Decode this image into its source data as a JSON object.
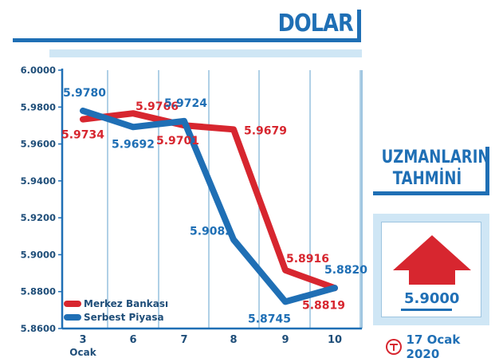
{
  "title": "DOLAR",
  "chart_data": {
    "type": "line",
    "categories": [
      "3",
      "6",
      "7",
      "8",
      "9",
      "10"
    ],
    "x_sublabel": "Ocak",
    "ylim": [
      5.86,
      6.0
    ],
    "yticks": [
      "5.8600",
      "5.8800",
      "5.9000",
      "5.9200",
      "5.9400",
      "5.9600",
      "5.9800",
      "6.0000"
    ],
    "grid": "vertical",
    "legend_position": "bottom-left",
    "series": [
      {
        "name": "Merkez Bankası",
        "color": "#d7262f",
        "values": [
          5.9734,
          5.9766,
          5.9701,
          5.9679,
          5.8916,
          5.8819
        ],
        "labels": [
          "5.9734",
          "5.9766",
          "5.9701",
          "5.9679",
          "5.8916",
          "5.8819"
        ]
      },
      {
        "name": "Serbest Piyasa",
        "color": "#1f6fb5",
        "values": [
          5.978,
          5.9692,
          5.9724,
          5.9082,
          5.8745,
          5.882
        ],
        "labels": [
          "5.9780",
          "5.9692",
          "5.9724",
          "5.9082",
          "5.8745",
          "5.8820"
        ]
      }
    ]
  },
  "forecast": {
    "title_line1": "UZMANLARIN",
    "title_line2": "TAHMİNİ",
    "value": "5.9000",
    "direction": "up",
    "arrow_icon": "up-arrow-icon",
    "arrow_color": "#d7262f"
  },
  "date": "17 Ocak 2020",
  "logo_icon": "t-logo-icon"
}
